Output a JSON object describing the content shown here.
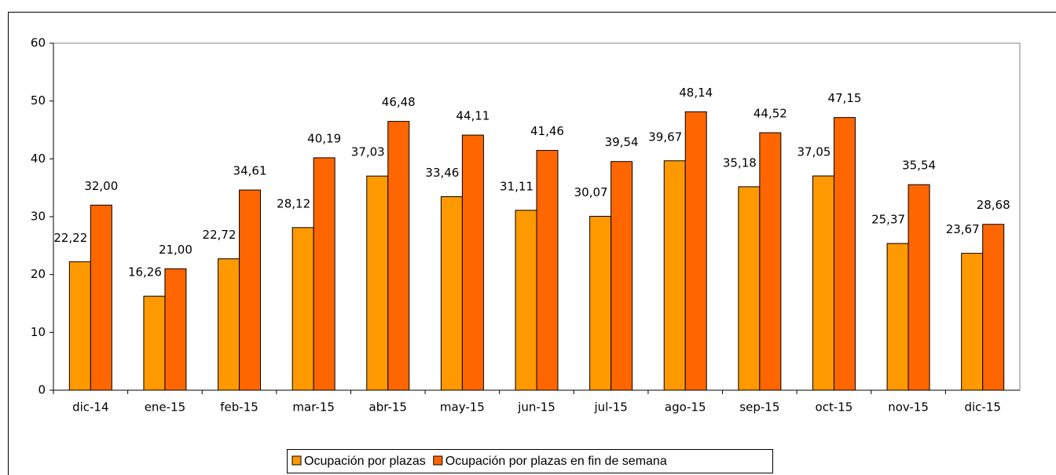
{
  "chart_data": {
    "type": "bar",
    "categories": [
      "dic-14",
      "ene-15",
      "feb-15",
      "mar-15",
      "abr-15",
      "may-15",
      "jun-15",
      "jul-15",
      "ago-15",
      "sep-15",
      "oct-15",
      "nov-15",
      "dic-15"
    ],
    "series": [
      {
        "name": "Ocupación por plazas",
        "color": "#ff9900",
        "values": [
          22.22,
          16.26,
          22.72,
          28.12,
          37.03,
          33.46,
          31.11,
          30.07,
          39.67,
          35.18,
          37.05,
          25.37,
          23.67
        ],
        "value_labels": [
          "22,22",
          "16,26",
          "22,72",
          "28,12",
          "37,03",
          "33,46",
          "31,11",
          "30,07",
          "39,67",
          "35,18",
          "37,05",
          "25,37",
          "23,67"
        ]
      },
      {
        "name": "Ocupación por plazas en fin de semana",
        "color": "#ff6600",
        "values": [
          32.0,
          21.0,
          34.61,
          40.19,
          46.48,
          44.11,
          41.46,
          39.54,
          48.14,
          44.52,
          47.15,
          35.54,
          28.68
        ],
        "value_labels": [
          "32,00",
          "21,00",
          "34,61",
          "40,19",
          "46,48",
          "44,11",
          "41,46",
          "39,54",
          "48,14",
          "44,52",
          "47,15",
          "35,54",
          "28,68"
        ]
      }
    ],
    "ylim": [
      0,
      60
    ],
    "yticks": [
      0,
      10,
      20,
      30,
      40,
      50,
      60
    ],
    "grid": false,
    "legend": "bottom"
  }
}
